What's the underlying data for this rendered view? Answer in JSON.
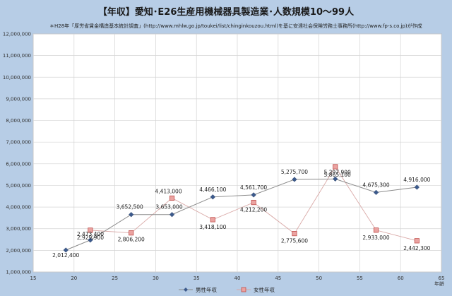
{
  "chart_data": {
    "type": "line",
    "title": "【年収】愛知･E26生産用機械器具製造業･人数規模10～99人",
    "subtitle": "＊H28年「厚労省賃金構造基本統計調査」(http://www.mhlw.go.jp/toukei/list/chinginkouzou.html)を基に安達社会保険労務士事務所(http://www.fp-s.co.jp)が作成",
    "xlabel": "年齢",
    "ylabel": "",
    "xlim": [
      15,
      65
    ],
    "ylim": [
      1000000,
      12000000
    ],
    "xticks": [
      15,
      20,
      25,
      30,
      35,
      40,
      45,
      50,
      55,
      60,
      65
    ],
    "xtick_labels": [
      "15",
      "20",
      "25",
      "30",
      "35",
      "40",
      "45",
      "50",
      "55",
      "60",
      "65"
    ],
    "yticks": [
      1000000,
      2000000,
      3000000,
      4000000,
      5000000,
      6000000,
      7000000,
      8000000,
      9000000,
      10000000,
      11000000,
      12000000
    ],
    "ytick_labels": [
      "1,000,000",
      "2,000,000",
      "3,000,000",
      "4,000,000",
      "5,000,000",
      "6,000,000",
      "7,000,000",
      "8,000,000",
      "9,000,000",
      "10,000,000",
      "11,000,000",
      "12,000,000"
    ],
    "grid": true,
    "legend_position": "bottom",
    "series": [
      {
        "name": "男性年収",
        "color": "#3c5a8c",
        "marker": "diamond",
        "x": [
          19,
          22,
          27,
          32,
          37,
          42,
          47,
          52,
          57,
          62
        ],
        "values": [
          2012400,
          2473400,
          3652500,
          3653000,
          4466100,
          4561700,
          5275700,
          5297900,
          4675300,
          4916000
        ],
        "labels": [
          "2,012,400",
          "2,473,400",
          "3,652,500",
          "3,653,000",
          "4,466,100",
          "4,561,700",
          "5,275,700",
          "5,297,900",
          "4,675,300",
          "4,916,000"
        ]
      },
      {
        "name": "女性年収",
        "color": "#c0504d",
        "marker": "square",
        "x": [
          22,
          27,
          32,
          37,
          42,
          47,
          52,
          57,
          62
        ],
        "values": [
          2929900,
          2806200,
          4413000,
          3418100,
          4212200,
          2775600,
          5865100,
          2933000,
          2442300
        ],
        "labels": [
          "2,929,900",
          "2,806,200",
          "4,413,000",
          "3,418,100",
          "4,212,200",
          "2,775,600",
          "5,865,100",
          "2,933,000",
          "2,442,300"
        ]
      }
    ]
  }
}
